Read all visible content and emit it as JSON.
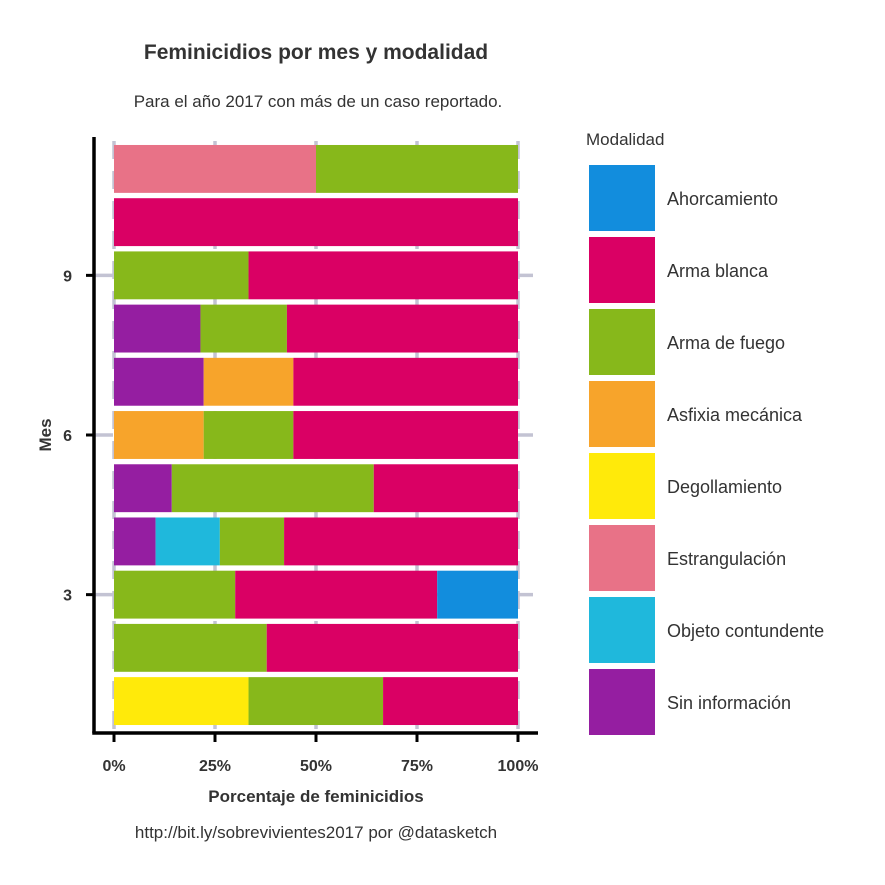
{
  "chart_data": {
    "type": "bar",
    "orientation": "horizontal",
    "stacked": "percent",
    "title": "Feminicidios por mes y modalidad",
    "subtitle": "Para el año 2017 con más de un caso reportado.",
    "caption": "http://bit.ly/sobrevivientes2017 por @datasketch",
    "xlabel": "Porcentaje de feminicidios",
    "ylabel": "Mes",
    "xlim": [
      0,
      100
    ],
    "ylim": [
      0.4,
      11.6
    ],
    "x_ticks": [
      0,
      25,
      50,
      75,
      100
    ],
    "x_tick_labels": [
      "0%",
      "25%",
      "50%",
      "75%",
      "100%"
    ],
    "y_ticks": [
      3,
      6,
      9
    ],
    "y_tick_labels": [
      "3",
      "6",
      "9"
    ],
    "grid": "dashed-major",
    "legend": {
      "title": "Modalidad",
      "position": "right"
    },
    "categories": [
      1,
      2,
      3,
      4,
      5,
      6,
      7,
      8,
      9,
      10,
      11
    ],
    "series": [
      {
        "name": "Degollamiento",
        "color": "#FFEA0A",
        "values": [
          33.3,
          0,
          0,
          0,
          0,
          0,
          0,
          0,
          0,
          0,
          0
        ]
      },
      {
        "name": "Sin información",
        "color": "#951EA1",
        "values": [
          0,
          0,
          0,
          10.3,
          14.3,
          0,
          22.2,
          21.4,
          0,
          0,
          0
        ]
      },
      {
        "name": "Objeto contundente",
        "color": "#1FB8DC",
        "values": [
          0,
          0,
          0,
          15.9,
          0,
          0,
          0,
          0,
          0,
          0,
          0
        ]
      },
      {
        "name": "Asfixia mecánica",
        "color": "#F7A42B",
        "values": [
          0,
          0,
          0,
          0,
          0,
          22.2,
          22.2,
          0,
          0,
          0,
          0
        ]
      },
      {
        "name": "Estrangulación",
        "color": "#E87287",
        "values": [
          0,
          0,
          0,
          0,
          0,
          0,
          0,
          0,
          0,
          0,
          50
        ]
      },
      {
        "name": "Arma de fuego",
        "color": "#87B81B",
        "values": [
          33.3,
          37.8,
          30,
          15.9,
          50,
          22.2,
          0,
          21.4,
          33.3,
          0,
          50
        ]
      },
      {
        "name": "Arma blanca",
        "color": "#DA0064",
        "values": [
          33.4,
          62.2,
          50,
          57.9,
          35.7,
          55.6,
          55.6,
          57.2,
          66.7,
          100,
          0
        ]
      },
      {
        "name": "Ahorcamiento",
        "color": "#128DDD",
        "values": [
          0,
          0,
          20,
          0,
          0,
          0,
          0,
          0,
          0,
          0,
          0
        ]
      }
    ],
    "legend_order": [
      "Ahorcamiento",
      "Arma blanca",
      "Arma de fuego",
      "Asfixia mecánica",
      "Degollamiento",
      "Estrangulación",
      "Objeto contundente",
      "Sin información"
    ]
  }
}
